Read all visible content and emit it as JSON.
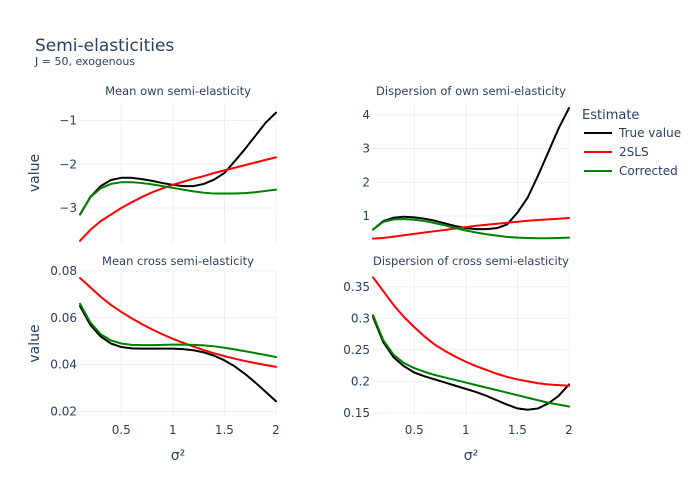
{
  "title": "Semi-elasticities",
  "subtitle": "J = 50, exogenous",
  "legend": {
    "title": "Estimate",
    "placement": "right",
    "entries": [
      {
        "name": "True value",
        "color": "#000000"
      },
      {
        "name": "2SLS",
        "color": "#ff0000"
      },
      {
        "name": "Corrected",
        "color": "#008000"
      }
    ]
  },
  "chart_data": [
    {
      "type": "line",
      "title": "Mean own semi-elasticity",
      "xlabel": "",
      "ylabel": "value",
      "xlim": [
        0.1,
        2
      ],
      "ylim": [
        -3.8,
        -0.6
      ],
      "xticks": [
        0.5,
        1,
        1.5,
        2
      ],
      "xtick_labels": [
        "",
        "",
        "",
        ""
      ],
      "yticks": [
        -3,
        -2,
        -1
      ],
      "ytick_labels": [
        "−3",
        "−2",
        "−1"
      ],
      "grid": true,
      "x": [
        0.1,
        0.2,
        0.3,
        0.4,
        0.5,
        0.6,
        0.7,
        0.8,
        0.9,
        1.0,
        1.1,
        1.2,
        1.3,
        1.4,
        1.5,
        1.6,
        1.7,
        1.8,
        1.9,
        2.0
      ],
      "series": [
        {
          "name": "True value",
          "color": "#000000",
          "values": [
            -3.15,
            -2.75,
            -2.5,
            -2.36,
            -2.31,
            -2.31,
            -2.34,
            -2.38,
            -2.43,
            -2.47,
            -2.5,
            -2.5,
            -2.45,
            -2.35,
            -2.2,
            -1.93,
            -1.65,
            -1.35,
            -1.05,
            -0.82
          ]
        },
        {
          "name": "2SLS",
          "color": "#ff0000",
          "values": [
            -3.75,
            -3.5,
            -3.3,
            -3.15,
            -3.0,
            -2.87,
            -2.75,
            -2.64,
            -2.55,
            -2.47,
            -2.4,
            -2.33,
            -2.27,
            -2.2,
            -2.14,
            -2.08,
            -2.02,
            -1.96,
            -1.9,
            -1.84
          ]
        },
        {
          "name": "Corrected",
          "color": "#008000",
          "values": [
            -3.15,
            -2.75,
            -2.55,
            -2.45,
            -2.41,
            -2.41,
            -2.43,
            -2.46,
            -2.5,
            -2.54,
            -2.58,
            -2.62,
            -2.65,
            -2.67,
            -2.67,
            -2.67,
            -2.66,
            -2.64,
            -2.61,
            -2.58
          ]
        }
      ]
    },
    {
      "type": "line",
      "title": "Dispersion of own semi-elasticity",
      "xlabel": "",
      "ylabel": "",
      "xlim": [
        0.1,
        2
      ],
      "ylim": [
        0.2,
        4.35
      ],
      "xticks": [
        0.5,
        1,
        1.5,
        2
      ],
      "xtick_labels": [
        "",
        "",
        "",
        ""
      ],
      "yticks": [
        1,
        2,
        3,
        4
      ],
      "ytick_labels": [
        "1",
        "2",
        "3",
        "4"
      ],
      "grid": true,
      "x": [
        0.1,
        0.2,
        0.3,
        0.4,
        0.5,
        0.6,
        0.7,
        0.8,
        0.9,
        1.0,
        1.1,
        1.2,
        1.3,
        1.4,
        1.5,
        1.6,
        1.7,
        1.8,
        1.9,
        2.0
      ],
      "series": [
        {
          "name": "True value",
          "color": "#000000",
          "values": [
            0.6,
            0.85,
            0.95,
            0.98,
            0.96,
            0.92,
            0.86,
            0.78,
            0.7,
            0.64,
            0.61,
            0.61,
            0.64,
            0.75,
            1.1,
            1.55,
            2.2,
            2.9,
            3.6,
            4.2
          ]
        },
        {
          "name": "2SLS",
          "color": "#ff0000",
          "values": [
            0.33,
            0.35,
            0.39,
            0.43,
            0.47,
            0.51,
            0.55,
            0.59,
            0.63,
            0.67,
            0.71,
            0.74,
            0.77,
            0.8,
            0.83,
            0.86,
            0.88,
            0.9,
            0.92,
            0.94
          ]
        },
        {
          "name": "Corrected",
          "color": "#008000",
          "values": [
            0.6,
            0.83,
            0.9,
            0.91,
            0.89,
            0.85,
            0.79,
            0.72,
            0.64,
            0.57,
            0.51,
            0.46,
            0.42,
            0.38,
            0.36,
            0.35,
            0.34,
            0.34,
            0.35,
            0.36
          ]
        }
      ]
    },
    {
      "type": "line",
      "title": "Mean cross semi-elasticity",
      "xlabel": "σ²",
      "ylabel": "value",
      "xlim": [
        0.1,
        2
      ],
      "ylim": [
        0.018,
        0.08
      ],
      "xticks": [
        0.5,
        1,
        1.5,
        2
      ],
      "xtick_labels": [
        "0.5",
        "1",
        "1.5",
        "2"
      ],
      "yticks": [
        0.02,
        0.04,
        0.06,
        0.08
      ],
      "ytick_labels": [
        "0.02",
        "0.04",
        "0.06",
        "0.08"
      ],
      "grid": true,
      "x": [
        0.1,
        0.2,
        0.3,
        0.4,
        0.5,
        0.6,
        0.7,
        0.8,
        0.9,
        1.0,
        1.1,
        1.2,
        1.3,
        1.4,
        1.5,
        1.6,
        1.7,
        1.8,
        1.9,
        2.0
      ],
      "series": [
        {
          "name": "True value",
          "color": "#000000",
          "values": [
            0.065,
            0.057,
            0.052,
            0.049,
            0.0475,
            0.0469,
            0.0468,
            0.0468,
            0.0468,
            0.0468,
            0.0466,
            0.0461,
            0.0452,
            0.0438,
            0.0418,
            0.0392,
            0.036,
            0.0323,
            0.0283,
            0.0243
          ]
        },
        {
          "name": "2SLS",
          "color": "#ff0000",
          "values": [
            0.077,
            0.073,
            0.069,
            0.0655,
            0.0625,
            0.0598,
            0.0573,
            0.055,
            0.0529,
            0.051,
            0.0493,
            0.0477,
            0.0462,
            0.0448,
            0.0436,
            0.0425,
            0.0415,
            0.0406,
            0.0398,
            0.039
          ]
        },
        {
          "name": "Corrected",
          "color": "#008000",
          "values": [
            0.066,
            0.058,
            0.053,
            0.0503,
            0.049,
            0.0484,
            0.0483,
            0.0483,
            0.0484,
            0.0485,
            0.0485,
            0.0484,
            0.0482,
            0.0478,
            0.0472,
            0.0465,
            0.0457,
            0.0449,
            0.0441,
            0.0432
          ]
        }
      ]
    },
    {
      "type": "line",
      "title": "Dispersion of cross semi-elasticity",
      "xlabel": "σ²",
      "ylabel": "",
      "xlim": [
        0.1,
        2
      ],
      "ylim": [
        0.145,
        0.375
      ],
      "xticks": [
        0.5,
        1,
        1.5,
        2
      ],
      "xtick_labels": [
        "0.5",
        "1",
        "1.5",
        "2"
      ],
      "yticks": [
        0.15,
        0.2,
        0.25,
        0.3,
        0.35
      ],
      "ytick_labels": [
        "0.15",
        "0.2",
        "0.25",
        "0.3",
        "0.35"
      ],
      "grid": true,
      "x": [
        0.1,
        0.2,
        0.3,
        0.4,
        0.5,
        0.6,
        0.7,
        0.8,
        0.9,
        1.0,
        1.1,
        1.2,
        1.3,
        1.4,
        1.5,
        1.6,
        1.7,
        1.8,
        1.9,
        2.0
      ],
      "series": [
        {
          "name": "True value",
          "color": "#000000",
          "values": [
            0.302,
            0.262,
            0.238,
            0.224,
            0.214,
            0.208,
            0.203,
            0.198,
            0.193,
            0.188,
            0.183,
            0.177,
            0.17,
            0.163,
            0.157,
            0.155,
            0.157,
            0.165,
            0.177,
            0.195
          ]
        },
        {
          "name": "2SLS",
          "color": "#ff0000",
          "values": [
            0.365,
            0.343,
            0.321,
            0.302,
            0.286,
            0.271,
            0.258,
            0.248,
            0.239,
            0.231,
            0.224,
            0.218,
            0.212,
            0.207,
            0.203,
            0.2,
            0.197,
            0.195,
            0.194,
            0.193
          ]
        },
        {
          "name": "Corrected",
          "color": "#008000",
          "values": [
            0.305,
            0.265,
            0.242,
            0.229,
            0.221,
            0.215,
            0.21,
            0.206,
            0.202,
            0.198,
            0.194,
            0.19,
            0.186,
            0.182,
            0.178,
            0.174,
            0.17,
            0.166,
            0.163,
            0.16
          ]
        }
      ]
    }
  ]
}
